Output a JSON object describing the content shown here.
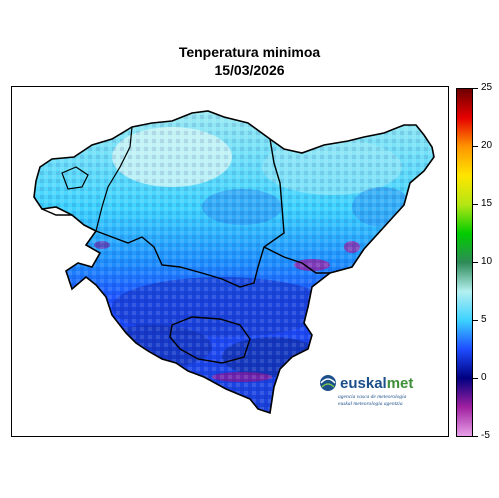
{
  "title": {
    "line1": "Tenperatura minimoa",
    "line2": "15/03/2026"
  },
  "colorbar": {
    "min": -5,
    "max": 25,
    "ticks": [
      {
        "value": 25,
        "label": "25"
      },
      {
        "value": 20,
        "label": "20"
      },
      {
        "value": 15,
        "label": "15"
      },
      {
        "value": 10,
        "label": "10"
      },
      {
        "value": 5,
        "label": "5"
      },
      {
        "value": 0,
        "label": "0"
      },
      {
        "value": -5,
        "label": "-5"
      }
    ],
    "stops": [
      {
        "value": -5,
        "color": "#e8a0e8"
      },
      {
        "value": -2.5,
        "color": "#a020a0"
      },
      {
        "value": 0,
        "color": "#000080"
      },
      {
        "value": 2.5,
        "color": "#1e4cff"
      },
      {
        "value": 5,
        "color": "#3cd2ff"
      },
      {
        "value": 7.5,
        "color": "#b4f0f0"
      },
      {
        "value": 10,
        "color": "#2e8b57"
      },
      {
        "value": 12.5,
        "color": "#00cc00"
      },
      {
        "value": 15,
        "color": "#b4e614"
      },
      {
        "value": 17.5,
        "color": "#ffe600"
      },
      {
        "value": 20,
        "color": "#ff9600"
      },
      {
        "value": 22.5,
        "color": "#e60000"
      },
      {
        "value": 25,
        "color": "#6e0000"
      }
    ]
  },
  "logo": {
    "name": "euskalmet",
    "tagline1": "agencia vasca de meteorología",
    "tagline2": "euskal meteorologia agentzia",
    "colors": {
      "euskal": "#1b4f8a",
      "met": "#3f8f3a"
    }
  },
  "map": {
    "colors": {
      "ocean": "#ffffff",
      "cold": "#1e4cff",
      "cool": "#3cd2ff",
      "mild": "#b4f0f0",
      "frost": "#a020a0",
      "border": "#000000"
    }
  }
}
